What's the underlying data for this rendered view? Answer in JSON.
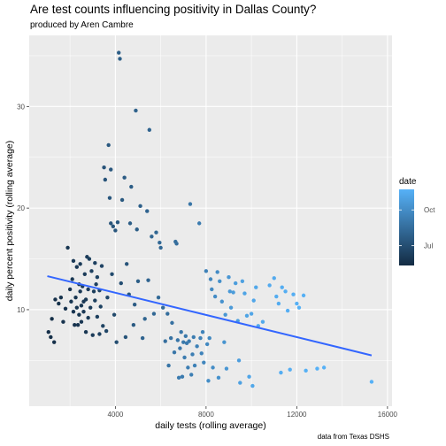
{
  "chart_data": {
    "type": "scatter",
    "title": "Are test counts influencing positivity in Dallas County?",
    "subtitle": "produced by Aren Cambre",
    "caption": "data from Texas DSHS",
    "xlabel": "daily tests (rolling average)",
    "ylabel": "daily percent positivity (rolling average)",
    "xlim": [
      200,
      16200
    ],
    "ylim": [
      0.5,
      37
    ],
    "xticks": [
      4000,
      8000,
      12000,
      16000
    ],
    "xtick_labels": [
      "4000",
      "8000",
      "12000",
      "16000"
    ],
    "yticks": [
      10,
      20,
      30
    ],
    "ytick_labels": [
      "10",
      "20",
      "30"
    ],
    "grid": true,
    "legend": {
      "title": "date",
      "position": "right",
      "labels": [
        "Oct",
        "Jul"
      ],
      "label_fractions": [
        0.73,
        0.26
      ],
      "color_low": "#132B43",
      "color_high": "#56B1F7"
    },
    "trend_line": {
      "x": [
        1000,
        15300
      ],
      "y": [
        13.3,
        5.5
      ],
      "color": "#3366FF"
    },
    "points": [
      [
        1050,
        7.8,
        0.03
      ],
      [
        1150,
        7.3,
        0.03
      ],
      [
        1200,
        9.1,
        0.03
      ],
      [
        1300,
        6.8,
        0.04
      ],
      [
        1350,
        11,
        0.04
      ],
      [
        1500,
        10.6,
        0.05
      ],
      [
        1600,
        11.2,
        0.05
      ],
      [
        1700,
        8.8,
        0.06
      ],
      [
        1800,
        10.1,
        0.06
      ],
      [
        1900,
        16.1,
        0.08
      ],
      [
        2000,
        12,
        0.07
      ],
      [
        2050,
        10.8,
        0.08
      ],
      [
        2100,
        13,
        0.09
      ],
      [
        2150,
        14.8,
        0.1
      ],
      [
        2150,
        9.8,
        0.07
      ],
      [
        2200,
        8.5,
        0.06
      ],
      [
        2250,
        11.2,
        0.08
      ],
      [
        2300,
        10.2,
        0.08
      ],
      [
        2300,
        14.2,
        0.1
      ],
      [
        2350,
        8.5,
        0.07
      ],
      [
        2400,
        9.5,
        0.08
      ],
      [
        2400,
        12.5,
        0.1
      ],
      [
        2450,
        11.8,
        0.1
      ],
      [
        2450,
        14.5,
        0.11
      ],
      [
        2500,
        10.4,
        0.09
      ],
      [
        2500,
        8.8,
        0.09
      ],
      [
        2550,
        12.3,
        0.11
      ],
      [
        2600,
        9.8,
        0.1
      ],
      [
        2600,
        10.8,
        0.1
      ],
      [
        2650,
        13.5,
        0.12
      ],
      [
        2700,
        7.8,
        0.09
      ],
      [
        2700,
        11,
        0.11
      ],
      [
        2750,
        15.2,
        0.13
      ],
      [
        2800,
        9.2,
        0.11
      ],
      [
        2800,
        12,
        0.12
      ],
      [
        2850,
        15,
        0.14
      ],
      [
        2900,
        10.2,
        0.12
      ],
      [
        2950,
        13.8,
        0.15
      ],
      [
        3000,
        7.5,
        0.12
      ],
      [
        3050,
        11.8,
        0.14
      ],
      [
        3100,
        10.9,
        0.15
      ],
      [
        3100,
        14.6,
        0.16
      ],
      [
        3150,
        12.5,
        0.16
      ],
      [
        3200,
        13.2,
        0.17
      ],
      [
        3200,
        9.3,
        0.15
      ],
      [
        3300,
        7.6,
        0.16
      ],
      [
        3300,
        11.9,
        0.17
      ],
      [
        3350,
        10.3,
        0.17
      ],
      [
        3400,
        14.3,
        0.19
      ],
      [
        3450,
        8.4,
        0.18
      ],
      [
        3500,
        24,
        0.3
      ],
      [
        3550,
        22.8,
        0.3
      ],
      [
        3600,
        7.9,
        0.2
      ],
      [
        3650,
        11.2,
        0.21
      ],
      [
        3700,
        26.2,
        0.34
      ],
      [
        3750,
        21,
        0.32
      ],
      [
        3800,
        23.8,
        0.33
      ],
      [
        3800,
        18.5,
        0.3
      ],
      [
        3850,
        13.5,
        0.24
      ],
      [
        3900,
        18.2,
        0.31
      ],
      [
        3950,
        9.5,
        0.23
      ],
      [
        4000,
        17.8,
        0.32
      ],
      [
        4050,
        6.8,
        0.25
      ],
      [
        4100,
        18.6,
        0.33
      ],
      [
        4150,
        35.3,
        0.38
      ],
      [
        4200,
        34.7,
        0.38
      ],
      [
        4250,
        12.6,
        0.26
      ],
      [
        4300,
        20.8,
        0.34
      ],
      [
        4400,
        23,
        0.36
      ],
      [
        4450,
        7.3,
        0.3
      ],
      [
        4500,
        14.5,
        0.3
      ],
      [
        4600,
        11.5,
        0.32
      ],
      [
        4650,
        18.5,
        0.37
      ],
      [
        4700,
        22.1,
        0.37
      ],
      [
        4800,
        8.5,
        0.35
      ],
      [
        4850,
        10.5,
        0.36
      ],
      [
        4900,
        29.6,
        0.4
      ],
      [
        4950,
        17.9,
        0.38
      ],
      [
        5000,
        12.8,
        0.38
      ],
      [
        5100,
        20.2,
        0.39
      ],
      [
        5200,
        7.2,
        0.42
      ],
      [
        5300,
        9.1,
        0.43
      ],
      [
        5400,
        19.7,
        0.42
      ],
      [
        5450,
        12.9,
        0.42
      ],
      [
        5500,
        27.7,
        0.42
      ],
      [
        5600,
        17.2,
        0.43
      ],
      [
        5700,
        9.6,
        0.45
      ],
      [
        5800,
        17.6,
        0.44
      ],
      [
        5900,
        11.2,
        0.46
      ],
      [
        5950,
        16.6,
        0.45
      ],
      [
        6000,
        16.1,
        0.45
      ],
      [
        6100,
        10.2,
        0.48
      ],
      [
        6200,
        6.9,
        0.5
      ],
      [
        6300,
        9.6,
        0.5
      ],
      [
        6350,
        4.5,
        0.55
      ],
      [
        6450,
        7.2,
        0.53
      ],
      [
        6500,
        8.7,
        0.52
      ],
      [
        6600,
        5.8,
        0.56
      ],
      [
        6650,
        16.7,
        0.5
      ],
      [
        6700,
        16.5,
        0.5
      ],
      [
        6750,
        7,
        0.56
      ],
      [
        6800,
        3.3,
        0.6
      ],
      [
        6850,
        6.2,
        0.57
      ],
      [
        6900,
        7.8,
        0.56
      ],
      [
        6950,
        3.4,
        0.6
      ],
      [
        7000,
        6.8,
        0.58
      ],
      [
        7050,
        5.3,
        0.6
      ],
      [
        7100,
        7.4,
        0.58
      ],
      [
        7150,
        6.7,
        0.59
      ],
      [
        7200,
        4.3,
        0.62
      ],
      [
        7250,
        6.9,
        0.6
      ],
      [
        7300,
        20.4,
        0.55
      ],
      [
        7350,
        3.6,
        0.63
      ],
      [
        7400,
        5.6,
        0.62
      ],
      [
        7450,
        7.3,
        0.61
      ],
      [
        7500,
        4.5,
        0.64
      ],
      [
        7600,
        6.4,
        0.64
      ],
      [
        7700,
        18.5,
        0.6
      ],
      [
        7750,
        7.2,
        0.65
      ],
      [
        7800,
        5.7,
        0.66
      ],
      [
        7850,
        7.8,
        0.66
      ],
      [
        7900,
        4.8,
        0.68
      ],
      [
        8000,
        13.8,
        0.65
      ],
      [
        8050,
        6.6,
        0.7
      ],
      [
        8100,
        3,
        0.73
      ],
      [
        8150,
        7.2,
        0.7
      ],
      [
        8200,
        13,
        0.68
      ],
      [
        8250,
        12,
        0.7
      ],
      [
        8300,
        4.3,
        0.73
      ],
      [
        8400,
        11.3,
        0.72
      ],
      [
        8500,
        13.7,
        0.72
      ],
      [
        8550,
        3.3,
        0.76
      ],
      [
        8600,
        12.8,
        0.75
      ],
      [
        8700,
        10.8,
        0.77
      ],
      [
        8800,
        6.8,
        0.78
      ],
      [
        8850,
        9.5,
        0.8
      ],
      [
        8900,
        4.2,
        0.8
      ],
      [
        9000,
        13.2,
        0.8
      ],
      [
        9050,
        11.8,
        0.82
      ],
      [
        9100,
        10.2,
        0.83
      ],
      [
        9200,
        11.7,
        0.84
      ],
      [
        9300,
        12.6,
        0.85
      ],
      [
        9400,
        8.9,
        0.86
      ],
      [
        9450,
        5,
        0.86
      ],
      [
        9500,
        2.8,
        0.88
      ],
      [
        9600,
        12.8,
        0.88
      ],
      [
        9700,
        11.6,
        0.9
      ],
      [
        9800,
        9.4,
        0.9
      ],
      [
        9900,
        3.4,
        0.91
      ],
      [
        10000,
        9.6,
        0.91
      ],
      [
        10050,
        2.5,
        0.93
      ],
      [
        10100,
        10.9,
        0.92
      ],
      [
        10200,
        12.2,
        0.93
      ],
      [
        10300,
        8.4,
        0.94
      ],
      [
        10500,
        8.8,
        0.94
      ],
      [
        10800,
        12.4,
        0.95
      ],
      [
        11000,
        13.1,
        0.95
      ],
      [
        11100,
        11.3,
        0.96
      ],
      [
        11200,
        10.6,
        0.96
      ],
      [
        11300,
        3.8,
        0.97
      ],
      [
        11350,
        12.2,
        0.97
      ],
      [
        11500,
        11.8,
        0.97
      ],
      [
        11600,
        9.9,
        0.98
      ],
      [
        11700,
        4.1,
        0.98
      ],
      [
        11850,
        11.5,
        0.98
      ],
      [
        12000,
        10.6,
        0.99
      ],
      [
        12100,
        10.2,
        0.99
      ],
      [
        12300,
        11.4,
        0.99
      ],
      [
        12400,
        4,
        0.99
      ],
      [
        12900,
        4.2,
        1
      ],
      [
        13200,
        4.3,
        1
      ],
      [
        15300,
        2.9,
        1
      ]
    ]
  }
}
